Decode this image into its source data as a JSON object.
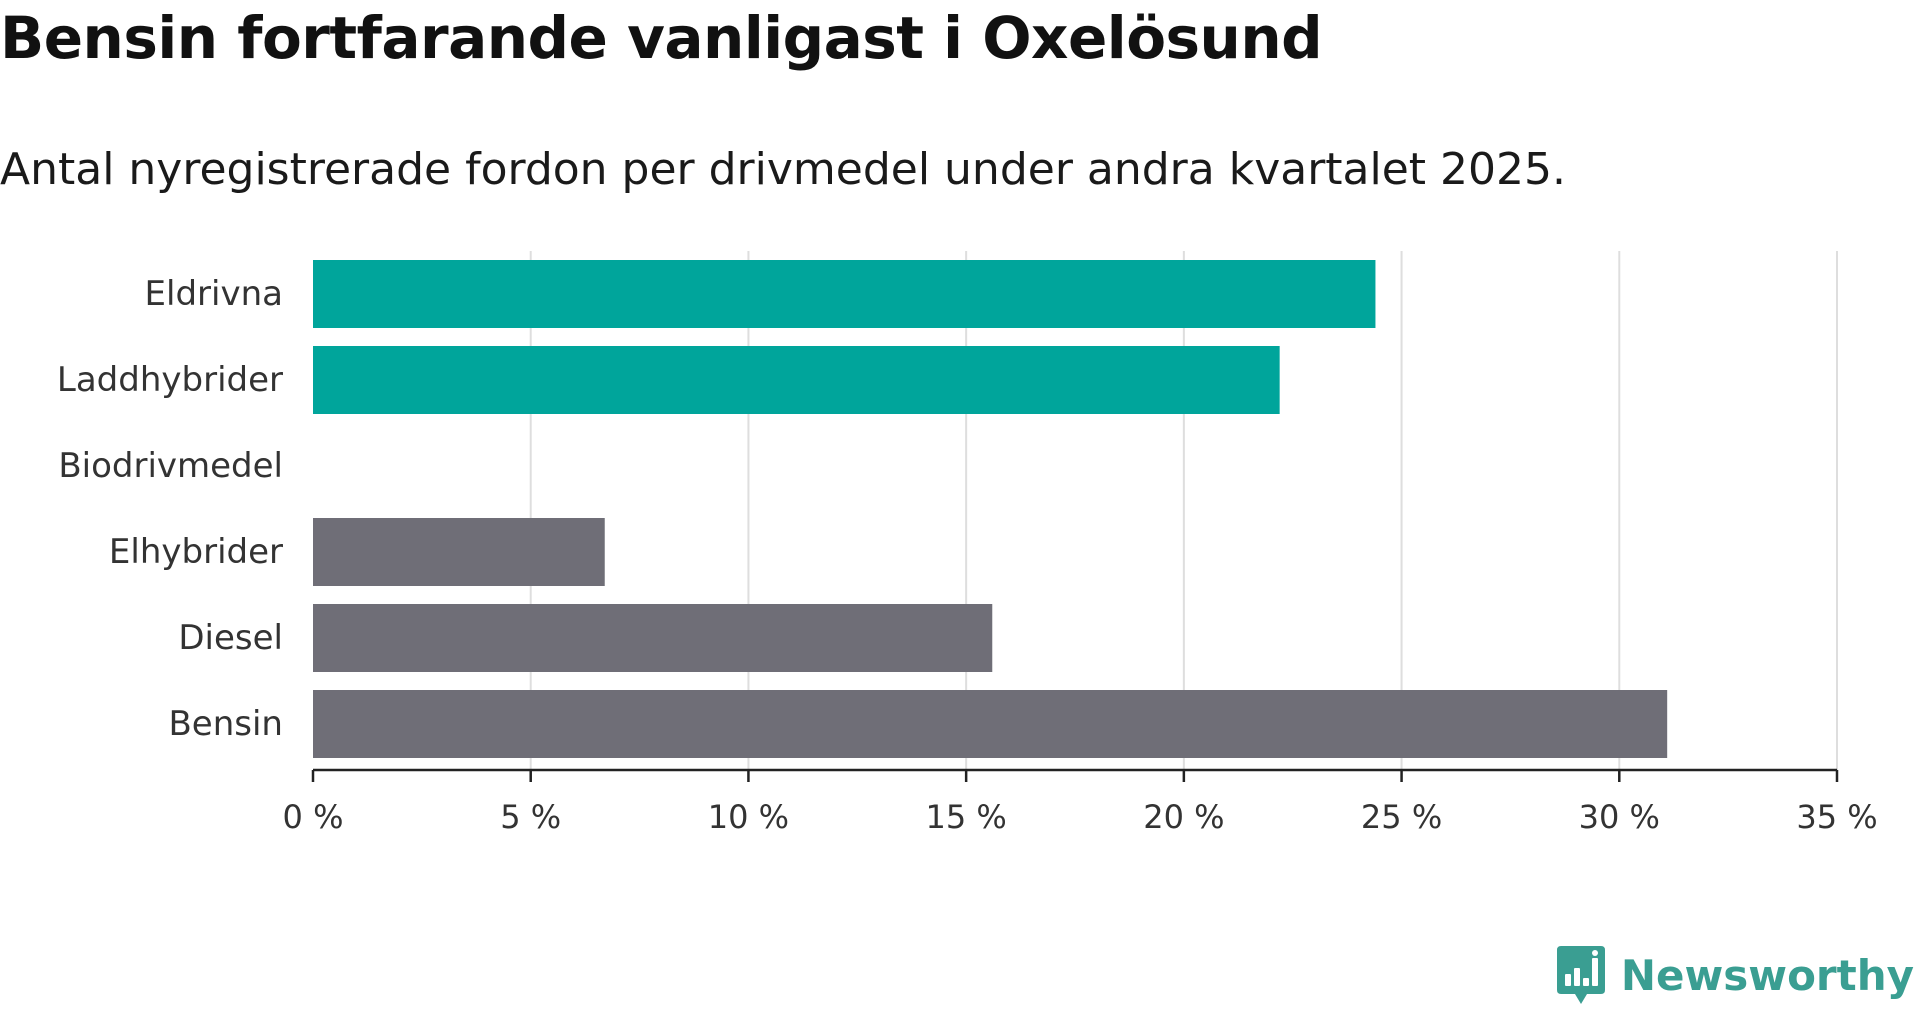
{
  "header": {
    "title": "Bensin fortfarande vanligast i Oxelösund",
    "subtitle": "Antal nyregistrerade fordon per drivmedel under andra kvartalet 2025."
  },
  "brand": {
    "name": "Newsworthy",
    "color": "#3a9e92",
    "icon": "newsworthy-logo-icon"
  },
  "chart_data": {
    "type": "bar",
    "orientation": "horizontal",
    "categories": [
      "Eldrivna",
      "Laddhybrider",
      "Biodrivmedel",
      "Elhybrider",
      "Diesel",
      "Bensin"
    ],
    "values": [
      24.4,
      22.2,
      0,
      6.7,
      15.6,
      31.1
    ],
    "colors": [
      "#00a59b",
      "#00a59b",
      "#00a59b",
      "#6f6e77",
      "#6f6e77",
      "#6f6e77"
    ],
    "xlim": [
      0,
      35
    ],
    "xticks": [
      0,
      5,
      10,
      15,
      20,
      25,
      30,
      35
    ],
    "xtick_labels": [
      "0 %",
      "5 %",
      "10 %",
      "15 %",
      "20 %",
      "25 %",
      "30 %",
      "35 %"
    ],
    "unit": "%",
    "grid": "vertical",
    "legend": "none"
  }
}
